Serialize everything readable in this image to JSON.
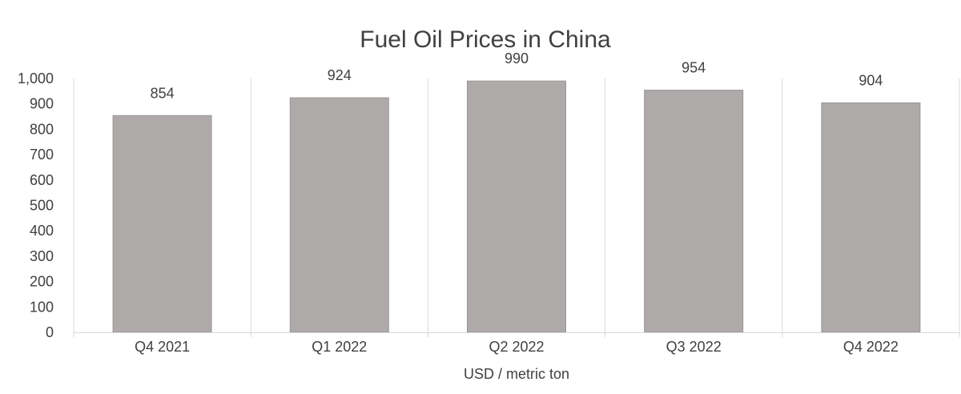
{
  "chart_data": {
    "type": "bar",
    "title": "Fuel Oil Prices in China",
    "xlabel": "USD / metric ton",
    "ylabel": "",
    "categories": [
      "Q4 2021",
      "Q1 2022",
      "Q2 2022",
      "Q3 2022",
      "Q4 2022"
    ],
    "values": [
      854,
      924,
      990,
      954,
      904
    ],
    "data_labels": [
      "854",
      "924",
      "990",
      "954",
      "904"
    ],
    "ylim": [
      0,
      1000
    ],
    "y_ticks": [
      0,
      100,
      200,
      300,
      400,
      500,
      600,
      700,
      800,
      900,
      1000
    ],
    "y_tick_labels": [
      "0",
      "100",
      "200",
      "300",
      "400",
      "500",
      "600",
      "700",
      "800",
      "900",
      "1,000"
    ],
    "grid": "vertical category separators",
    "legend": "none",
    "colors": {
      "bar": "#aeaaaa",
      "bar_border": "#9a9696",
      "grid": "#d9d9d9",
      "text": "#404040"
    }
  }
}
